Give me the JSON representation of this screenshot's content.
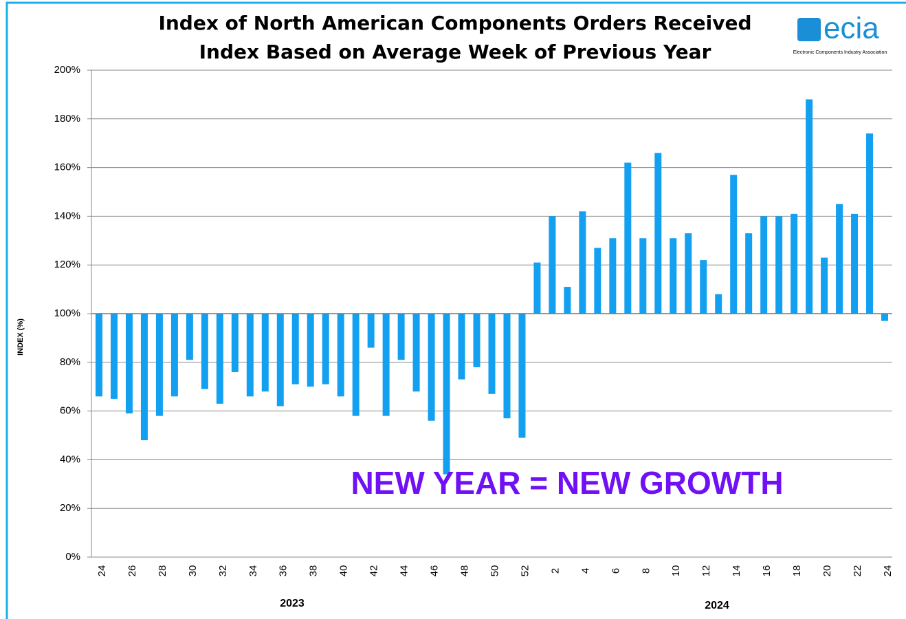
{
  "chart_data": {
    "type": "bar",
    "title": "Index of North American Components Orders Received",
    "subtitle": "Index Based on Average Week of Previous Year",
    "y_label": "INDEX (%)",
    "annotation": "NEW YEAR = NEW GROWTH",
    "logo": "ecia",
    "logo_subtitle": "Electronic Components Industry Association",
    "year_labels": [
      "2023",
      "2024"
    ],
    "categories": [
      "24",
      null,
      "26",
      null,
      "28",
      null,
      "30",
      null,
      "32",
      null,
      "34",
      null,
      "36",
      null,
      "38",
      null,
      "40",
      null,
      "42",
      null,
      "44",
      null,
      "46",
      null,
      "48",
      null,
      "50",
      null,
      "52",
      null,
      "2",
      null,
      "4",
      null,
      "6",
      null,
      "8",
      null,
      "10",
      null,
      "12",
      null,
      "14",
      null,
      "16",
      null,
      "18",
      null,
      "20",
      null,
      "22",
      null,
      "24"
    ],
    "values": [
      66,
      65,
      59,
      48,
      58,
      66,
      81,
      69,
      63,
      76,
      66,
      68,
      62,
      71,
      70,
      71,
      66,
      58,
      86,
      58,
      81,
      68,
      56,
      34,
      73,
      78,
      67,
      57,
      49,
      121,
      140,
      111,
      142,
      127,
      131,
      162,
      131,
      166,
      131,
      133,
      122,
      108,
      157,
      133,
      140,
      140,
      141,
      188,
      123,
      145,
      141,
      174,
      97
    ],
    "color": "#13a0f0",
    "baseline": 100,
    "ylim": [
      0,
      200
    ],
    "yticks": [
      {
        "value": 0,
        "label": "0%"
      },
      {
        "value": 20,
        "label": "20%"
      },
      {
        "value": 40,
        "label": "40%"
      },
      {
        "value": 60,
        "label": "60%"
      },
      {
        "value": 80,
        "label": "80%"
      },
      {
        "value": 100,
        "label": "100%"
      },
      {
        "value": 120,
        "label": "120%"
      },
      {
        "value": 140,
        "label": "140%"
      },
      {
        "value": 160,
        "label": "160%"
      },
      {
        "value": 180,
        "label": "180%"
      },
      {
        "value": 200,
        "label": "200%"
      }
    ],
    "grid": true
  }
}
